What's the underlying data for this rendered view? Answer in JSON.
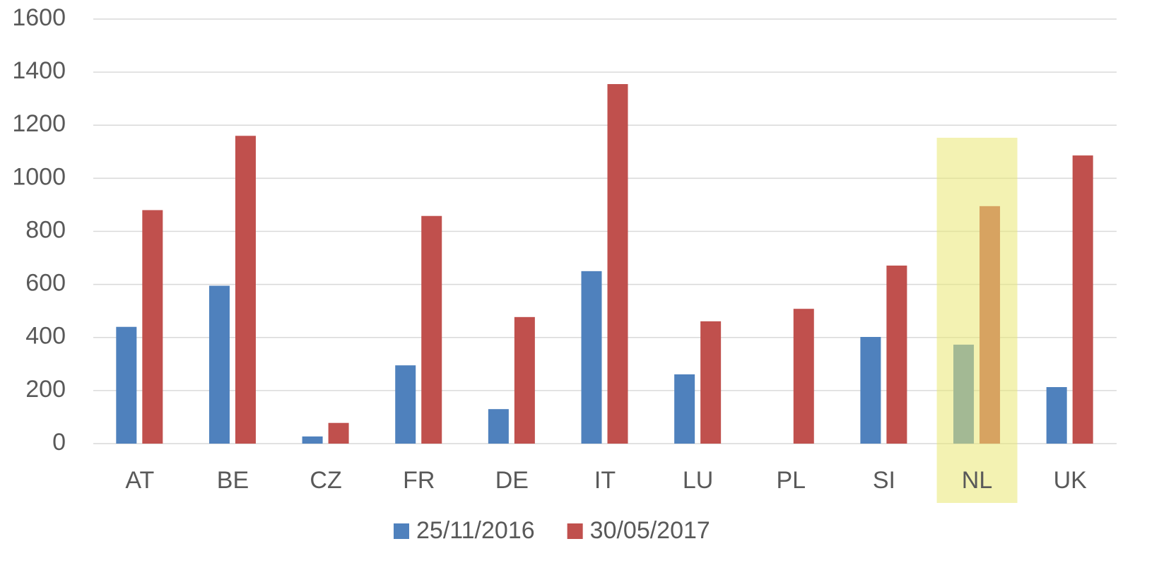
{
  "chart_data": {
    "type": "bar",
    "categories": [
      "AT",
      "BE",
      "CZ",
      "FR",
      "DE",
      "IT",
      "LU",
      "PL",
      "SI",
      "NL",
      "UK"
    ],
    "series": [
      {
        "name": "25/11/2016",
        "color": "#4f81bd",
        "values": [
          440,
          595,
          27,
          295,
          130,
          650,
          261,
          null,
          402,
          373,
          213
        ]
      },
      {
        "name": "30/05/2017",
        "color": "#c0504d",
        "values": [
          880,
          1160,
          78,
          858,
          477,
          1355,
          461,
          508,
          671,
          895,
          1086
        ]
      }
    ],
    "ylim": [
      0,
      1600
    ],
    "yticks": [
      0,
      200,
      400,
      600,
      800,
      1000,
      1200,
      1400,
      1600
    ],
    "grid": true,
    "legend": "bottom",
    "highlight": "NL",
    "highlight_color": "#e9e772"
  }
}
